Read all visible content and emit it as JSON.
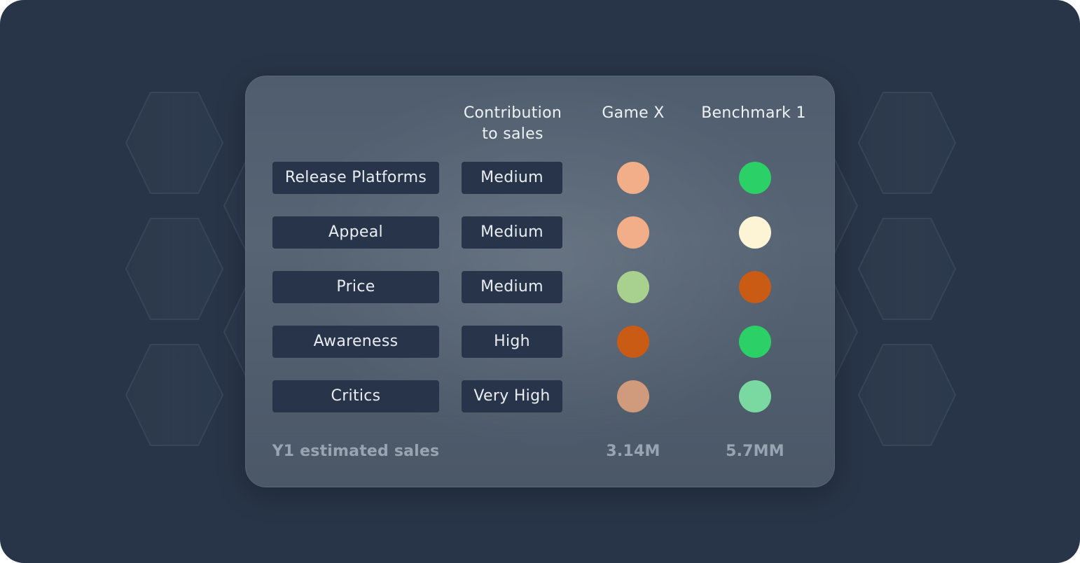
{
  "table": {
    "headers": {
      "contribution": "Contribution\nto sales",
      "game": "Game X",
      "benchmark": "Benchmark 1"
    },
    "rows": [
      {
        "label": "Release Platforms",
        "contribution": "Medium",
        "game_color": "#f2ae88",
        "benchmark_color": "#2bd067"
      },
      {
        "label": "Appeal",
        "contribution": "Medium",
        "game_color": "#f2ae88",
        "benchmark_color": "#fdf3d5"
      },
      {
        "label": "Price",
        "contribution": "Medium",
        "game_color": "#a8d08e",
        "benchmark_color": "#c95b14"
      },
      {
        "label": "Awareness",
        "contribution": "High",
        "game_color": "#c95b14",
        "benchmark_color": "#2bd067"
      },
      {
        "label": "Critics",
        "contribution": "Very High",
        "game_color": "#d09a7c",
        "benchmark_color": "#7ad9a0"
      }
    ],
    "footer": {
      "label": "Y1 estimated sales",
      "game_value": "3.14M",
      "benchmark_value": "5.7MM"
    }
  }
}
